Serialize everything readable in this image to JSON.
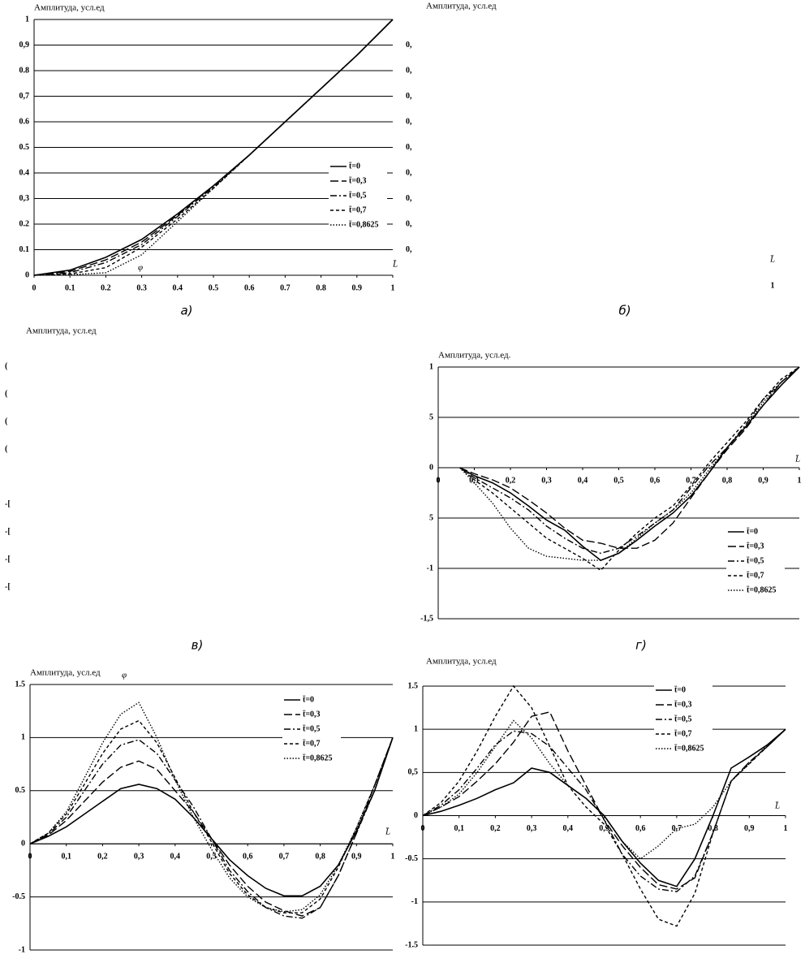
{
  "chart_data": [
    {
      "type": "line",
      "title": "Амплитуда, усл.ед",
      "caption": "а)",
      "x_label": "L̄",
      "annotation": "φ",
      "grid": true,
      "frame": true,
      "x": [
        0,
        0.1,
        0.2,
        0.3,
        0.4,
        0.5,
        0.6,
        0.7,
        0.8,
        0.9,
        1
      ],
      "xlim": [
        0,
        1
      ],
      "ylim": [
        0,
        1
      ],
      "xticks": [
        0,
        0.1,
        0.2,
        0.3,
        0.4,
        0.5,
        0.6,
        0.7,
        0.8,
        0.9,
        1
      ],
      "yticks": [
        0,
        0.1,
        0.2,
        {
          "value": 0.3,
          "label": "0,3"
        },
        0.4,
        0.5,
        0.6,
        {
          "value": 0.7,
          "label": "0,7"
        },
        0.8,
        {
          "value": 0.9,
          "label": "0,9"
        },
        1
      ],
      "series": [
        {
          "name": "t̄=0",
          "color": "#000",
          "style": "solid",
          "values": [
            0,
            0.02,
            0.07,
            0.14,
            0.24,
            0.35,
            0.47,
            0.6,
            0.73,
            0.86,
            1
          ]
        },
        {
          "name": "t̄=0,3",
          "color": "#000",
          "style": "long",
          "values": [
            0,
            0.015,
            0.06,
            0.13,
            0.235,
            0.35,
            0.47,
            0.6,
            0.73,
            0.86,
            1
          ]
        },
        {
          "name": "t̄=0,5",
          "color": "#000",
          "style": "dashdot",
          "values": [
            0,
            0.01,
            0.05,
            0.12,
            0.23,
            0.345,
            0.47,
            0.6,
            0.73,
            0.86,
            1
          ]
        },
        {
          "name": "t̄=0,7",
          "color": "#000",
          "style": "dash",
          "values": [
            0,
            0.005,
            0.03,
            0.11,
            0.22,
            0.34,
            0.47,
            0.6,
            0.73,
            0.86,
            1
          ]
        },
        {
          "name": "t̄=0,8625",
          "color": "#000",
          "style": "dot",
          "values": [
            0,
            0.002,
            0.01,
            0.08,
            0.21,
            0.34,
            0.47,
            0.6,
            0.73,
            0.86,
            1
          ]
        }
      ]
    },
    {
      "type": "line",
      "title": "Амплитуда, усл.ед",
      "caption": "б)",
      "x_label": "L̄",
      "grid": false,
      "frame": false,
      "xlim": [
        0,
        1
      ],
      "ylim": [
        0,
        1
      ],
      "xticks": [
        {
          "value": 1,
          "label": "1"
        }
      ],
      "yticks": [
        {
          "value": 0.9,
          "label": "0,"
        },
        {
          "value": 0.8,
          "label": "0,"
        },
        {
          "value": 0.7,
          "label": "0,"
        },
        {
          "value": 0.6,
          "label": "0,"
        },
        {
          "value": 0.5,
          "label": "0,"
        },
        {
          "value": 0.4,
          "label": "0,"
        },
        {
          "value": 0.3,
          "label": "0,"
        },
        {
          "value": 0.2,
          "label": "0,"
        },
        {
          "value": 0.1,
          "label": "0,"
        }
      ],
      "series": []
    },
    {
      "type": "line",
      "title": "Амплитуда, усл.ед",
      "caption": "в)",
      "grid": false,
      "frame": false,
      "xlim": [
        0,
        1
      ],
      "ylim": [
        -0.5,
        0.5
      ],
      "xticks": [],
      "yticks": [
        {
          "value": 0.4,
          "label": "("
        },
        {
          "value": 0.3,
          "label": "("
        },
        {
          "value": 0.2,
          "label": "("
        },
        {
          "value": 0.1,
          "label": "("
        },
        {
          "value": -0.1,
          "label": "-["
        },
        {
          "value": -0.2,
          "label": "-["
        },
        {
          "value": -0.3,
          "label": "-["
        },
        {
          "value": -0.4,
          "label": "-["
        }
      ],
      "series": []
    },
    {
      "type": "line",
      "title": "Амплитуда, усл.ед.",
      "caption": "г)",
      "x_label": "L̄",
      "grid": true,
      "frame": true,
      "x": [
        0.06,
        0.1,
        0.15,
        0.2,
        0.25,
        0.3,
        0.35,
        0.4,
        0.45,
        0.5,
        0.55,
        0.6,
        0.65,
        0.7,
        0.75,
        0.8,
        0.85,
        0.9,
        0.95,
        1
      ],
      "xlim": [
        0,
        1
      ],
      "ylim": [
        -1.5,
        1
      ],
      "xticks": [
        0,
        {
          "value": 0.1,
          "label": "0,1"
        },
        {
          "value": 0.2,
          "label": "0,2"
        },
        {
          "value": 0.3,
          "label": "0,3"
        },
        {
          "value": 0.4,
          "label": "0,4"
        },
        {
          "value": 0.5,
          "label": "0,5"
        },
        {
          "value": 0.6,
          "label": "0,6"
        },
        {
          "value": 0.7,
          "label": "0,7"
        },
        {
          "value": 0.8,
          "label": "0,8"
        },
        {
          "value": 0.9,
          "label": "0,9"
        },
        1
      ],
      "yticks": [
        {
          "value": -1.5,
          "label": "-1,5"
        },
        {
          "value": -1,
          "label": "-1"
        },
        {
          "value": -0.5,
          "label": "5"
        },
        0,
        {
          "value": 0.5,
          "label": "5"
        },
        1
      ],
      "series": [
        {
          "name": "t̄=0",
          "color": "#000",
          "style": "solid",
          "values": [
            0,
            -0.08,
            -0.15,
            -0.25,
            -0.38,
            -0.52,
            -0.62,
            -0.78,
            -0.92,
            -0.85,
            -0.72,
            -0.58,
            -0.45,
            -0.28,
            -0.05,
            0.2,
            0.4,
            0.62,
            0.82,
            1
          ]
        },
        {
          "name": "t̄=0,3",
          "color": "#000",
          "style": "long",
          "values": [
            0,
            -0.06,
            -0.12,
            -0.2,
            -0.32,
            -0.45,
            -0.6,
            -0.72,
            -0.75,
            -0.8,
            -0.8,
            -0.72,
            -0.55,
            -0.3,
            -0.05,
            0.18,
            0.38,
            0.62,
            0.85,
            1
          ]
        },
        {
          "name": "t̄=0,5",
          "color": "#000",
          "style": "dashdot",
          "values": [
            0,
            -0.1,
            -0.2,
            -0.3,
            -0.42,
            -0.58,
            -0.7,
            -0.8,
            -0.85,
            -0.8,
            -0.68,
            -0.55,
            -0.42,
            -0.2,
            0.02,
            0.2,
            0.42,
            0.68,
            0.85,
            1
          ]
        },
        {
          "name": "t̄=0,7",
          "color": "#000",
          "style": "dash",
          "values": [
            0,
            -0.12,
            -0.25,
            -0.4,
            -0.55,
            -0.7,
            -0.8,
            -0.9,
            -1.02,
            -0.82,
            -0.65,
            -0.5,
            -0.38,
            -0.18,
            0.05,
            0.25,
            0.45,
            0.68,
            0.88,
            1
          ]
        },
        {
          "name": "t̄=0,8625",
          "color": "#000",
          "style": "dot",
          "values": [
            0,
            -0.15,
            -0.35,
            -0.6,
            -0.8,
            -0.88,
            -0.9,
            -0.92,
            -0.92,
            -0.85,
            -0.7,
            -0.55,
            -0.42,
            -0.25,
            -0.02,
            0.2,
            0.4,
            0.65,
            0.85,
            1
          ]
        }
      ]
    },
    {
      "type": "line",
      "title": "Амплитуда, усл.ед",
      "x_label": "L̄",
      "annotation": "φ",
      "grid": true,
      "frame": true,
      "x": [
        0,
        0.05,
        0.1,
        0.15,
        0.2,
        0.25,
        0.3,
        0.35,
        0.4,
        0.45,
        0.5,
        0.55,
        0.6,
        0.65,
        0.7,
        0.75,
        0.8,
        0.85,
        0.9,
        0.95,
        1
      ],
      "xlim": [
        0,
        1
      ],
      "ylim": [
        -1,
        1.5
      ],
      "xticks": [
        0,
        {
          "value": 0.1,
          "label": "0,1"
        },
        {
          "value": 0.2,
          "label": "0,2"
        },
        {
          "value": 0.3,
          "label": "0,3"
        },
        {
          "value": 0.4,
          "label": "0,4"
        },
        {
          "value": 0.5,
          "label": "0,5"
        },
        {
          "value": 0.6,
          "label": "0,6"
        },
        {
          "value": 0.7,
          "label": "0,7"
        },
        {
          "value": 0.8,
          "label": "0,8"
        },
        {
          "value": 0.9,
          "label": "0,9"
        },
        1
      ],
      "yticks": [
        -1,
        -0.5,
        0,
        0.5,
        1,
        1.5
      ],
      "series": [
        {
          "name": "t̄=0",
          "color": "#000",
          "style": "solid",
          "values": [
            0,
            0.07,
            0.16,
            0.28,
            0.4,
            0.52,
            0.56,
            0.52,
            0.42,
            0.25,
            0.05,
            -0.15,
            -0.3,
            -0.42,
            -0.49,
            -0.49,
            -0.4,
            -0.2,
            0.12,
            0.5,
            1
          ]
        },
        {
          "name": "t̄=0,3",
          "color": "#000",
          "style": "long",
          "values": [
            0,
            0.08,
            0.22,
            0.4,
            0.58,
            0.72,
            0.78,
            0.7,
            0.5,
            0.3,
            0.05,
            -0.2,
            -0.4,
            -0.55,
            -0.63,
            -0.68,
            -0.6,
            -0.3,
            0.1,
            0.55,
            1
          ]
        },
        {
          "name": "t̄=0,5",
          "color": "#000",
          "style": "dashdot",
          "values": [
            0,
            0.09,
            0.25,
            0.5,
            0.75,
            0.93,
            0.98,
            0.85,
            0.6,
            0.35,
            0.05,
            -0.25,
            -0.45,
            -0.6,
            -0.68,
            -0.7,
            -0.6,
            -0.3,
            0.1,
            0.5,
            1
          ]
        },
        {
          "name": "t̄=0,7",
          "color": "#000",
          "style": "dash",
          "values": [
            0,
            0.1,
            0.28,
            0.56,
            0.85,
            1.08,
            1.16,
            0.95,
            0.62,
            0.3,
            0.02,
            -0.28,
            -0.48,
            -0.6,
            -0.65,
            -0.65,
            -0.52,
            -0.22,
            0.15,
            0.55,
            1
          ]
        },
        {
          "name": "t̄=0,8625",
          "color": "#000",
          "style": "dot",
          "values": [
            0,
            0.1,
            0.3,
            0.62,
            0.95,
            1.22,
            1.33,
            1.0,
            0.6,
            0.25,
            -0.05,
            -0.32,
            -0.5,
            -0.6,
            -0.64,
            -0.62,
            -0.48,
            -0.2,
            0.15,
            0.55,
            1
          ]
        }
      ]
    },
    {
      "type": "line",
      "title": "Амплитуда, усл.ед",
      "x_label": "L̄",
      "grid": true,
      "frame": true,
      "x": [
        0,
        0.05,
        0.1,
        0.15,
        0.2,
        0.25,
        0.3,
        0.35,
        0.4,
        0.45,
        0.5,
        0.55,
        0.6,
        0.65,
        0.7,
        0.75,
        0.8,
        0.85,
        0.9,
        0.95,
        1
      ],
      "xlim": [
        0,
        1
      ],
      "ylim": [
        -1.5,
        1.5
      ],
      "xticks": [
        0,
        {
          "value": 0.1,
          "label": "0,1"
        },
        {
          "value": 0.2,
          "label": "0,2"
        },
        {
          "value": 0.3,
          "label": "0,3"
        },
        {
          "value": 0.4,
          "label": "0,4"
        },
        {
          "value": 0.5,
          "label": "0,5"
        },
        {
          "value": 0.6,
          "label": "0,6"
        },
        {
          "value": 0.7,
          "label": "0,7"
        },
        {
          "value": 0.8,
          "label": "0,8"
        },
        {
          "value": 0.9,
          "label": "0,9"
        },
        1
      ],
      "yticks": [
        -1.5,
        -1,
        -0.5,
        0,
        {
          "value": 0.5,
          "label": "0,5"
        },
        1,
        1.5
      ],
      "series": [
        {
          "name": "t̄=0",
          "color": "#000",
          "style": "solid",
          "values": [
            0,
            0.05,
            0.12,
            0.2,
            0.3,
            0.38,
            0.55,
            0.5,
            0.35,
            0.2,
            0,
            -0.3,
            -0.55,
            -0.75,
            -0.82,
            -0.5,
            0,
            0.55,
            0.68,
            0.82,
            1
          ]
        },
        {
          "name": "t̄=0,3",
          "color": "#000",
          "style": "long",
          "values": [
            0,
            0.1,
            0.22,
            0.4,
            0.6,
            0.85,
            1.15,
            1.2,
            0.75,
            0.35,
            -0.05,
            -0.35,
            -0.6,
            -0.8,
            -0.85,
            -0.72,
            -0.2,
            0.4,
            0.62,
            0.8,
            1
          ]
        },
        {
          "name": "t̄=0,5",
          "color": "#000",
          "style": "dashdot",
          "values": [
            0,
            0.12,
            0.3,
            0.55,
            0.82,
            0.98,
            0.95,
            0.8,
            0.55,
            0.3,
            -0.05,
            -0.45,
            -0.7,
            -0.85,
            -0.88,
            -0.7,
            -0.2,
            0.4,
            0.62,
            0.8,
            1
          ]
        },
        {
          "name": "t̄=0,7",
          "color": "#000",
          "style": "dash",
          "values": [
            0,
            0.15,
            0.4,
            0.75,
            1.15,
            1.5,
            1.25,
            0.8,
            0.35,
            0.1,
            -0.1,
            -0.45,
            -0.85,
            -1.2,
            -1.28,
            -0.9,
            -0.2,
            0.4,
            0.6,
            0.8,
            1
          ]
        },
        {
          "name": "t̄=0,8625",
          "color": "#000",
          "style": "dot",
          "values": [
            0,
            0.1,
            0.25,
            0.5,
            0.8,
            1.1,
            0.9,
            0.6,
            0.35,
            0.2,
            0,
            -0.3,
            -0.5,
            -0.35,
            -0.15,
            -0.1,
            0.1,
            0.4,
            0.6,
            0.82,
            1
          ]
        }
      ]
    }
  ]
}
